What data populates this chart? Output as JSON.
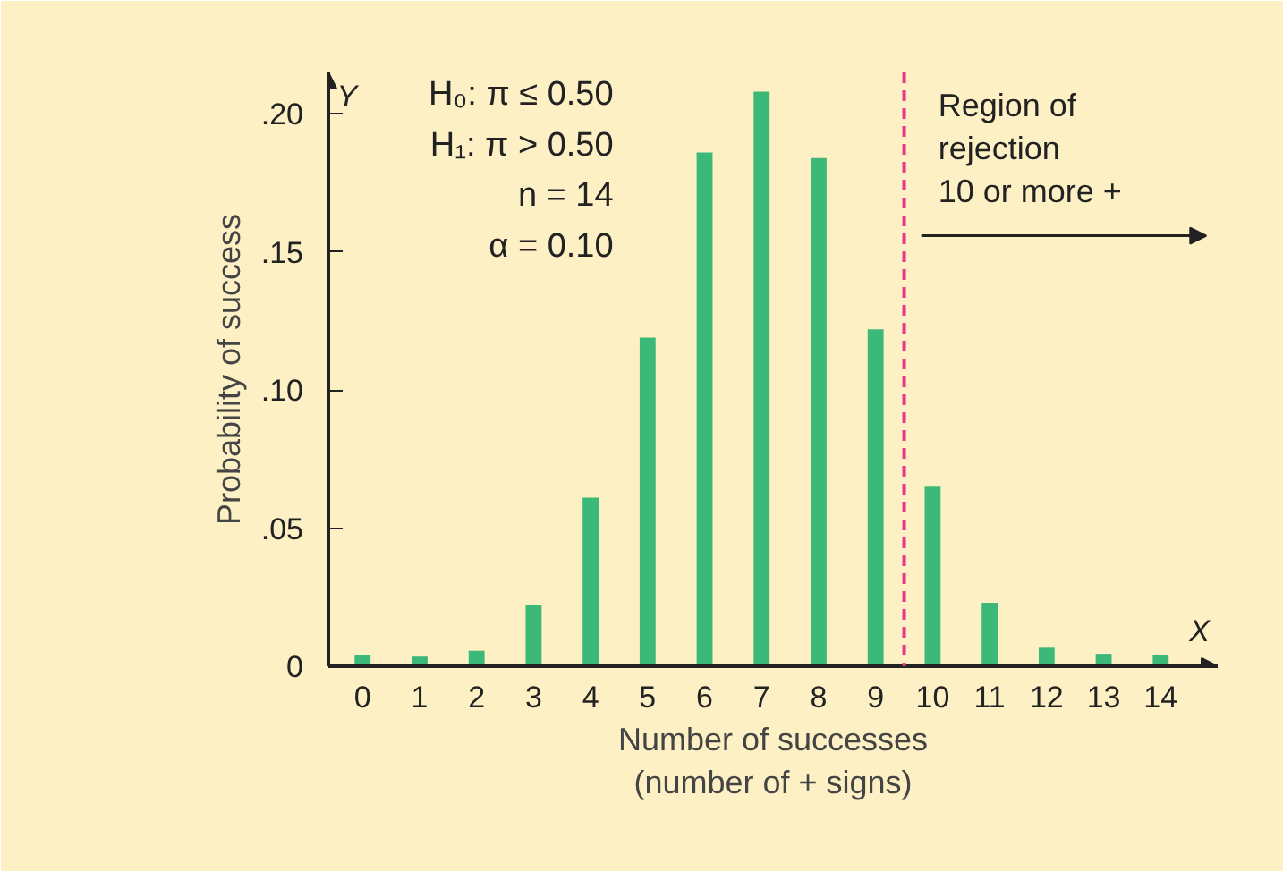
{
  "chart_data": {
    "type": "bar",
    "xlabel": "Number of successes\n(number of + signs)",
    "ylabel": "Probability of success",
    "x": [
      0,
      1,
      2,
      3,
      4,
      5,
      6,
      7,
      8,
      9,
      10,
      11,
      12,
      13,
      14
    ],
    "values": [
      0.004,
      0.0035,
      0.0056,
      0.022,
      0.061,
      0.119,
      0.186,
      0.208,
      0.184,
      0.122,
      0.065,
      0.023,
      0.0067,
      0.0045,
      0.004
    ],
    "color": "#3cb878",
    "xlim": [
      -0.6,
      15.0
    ],
    "ylim": [
      0,
      0.215
    ],
    "xticks": [
      0,
      1,
      2,
      3,
      4,
      5,
      6,
      7,
      8,
      9,
      10,
      11,
      12,
      13,
      14
    ],
    "yticks": [
      {
        "value": 0,
        "label": "0"
      },
      {
        "value": 0.05,
        "label": ".05"
      },
      {
        "value": 0.1,
        "label": ".10"
      },
      {
        "value": 0.15,
        "label": ".15"
      },
      {
        "value": 0.2,
        "label": ".20"
      }
    ],
    "ref_lines": [
      {
        "axis": "x",
        "value": 9.5,
        "label": "Region of\nrejection\n10 or more +",
        "color": "#e8378a",
        "line_style": "dashed"
      }
    ],
    "annotations": [
      "H₀: π ≤ 0.50",
      "H₁: π > 0.50",
      "n = 14",
      "α = 0.10",
      "Y",
      "X"
    ],
    "grid": false
  }
}
